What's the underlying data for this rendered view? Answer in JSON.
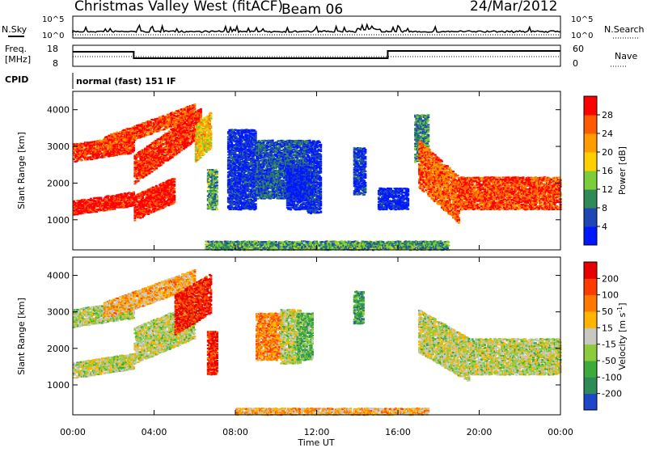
{
  "header": {
    "station": "Christmas Valley West (fitACF)",
    "beam": "Beam 06",
    "date": "24/Mar/2012"
  },
  "summary_panels": {
    "nsky_label": "N.Sky",
    "nsearch_label": "N.Search",
    "count_ticks": [
      "10^5",
      "10^0"
    ],
    "freq_label": "Freq.",
    "freq_unit": "[MHz]",
    "freq_ticks": [
      "18",
      "8"
    ],
    "nave_label": "Nave",
    "nave_ticks": [
      "60",
      "0"
    ],
    "cpid_label": "CPID",
    "cpid_text": "normal (fast) 151 IF"
  },
  "chart_data": [
    {
      "type": "heatmap",
      "title": "",
      "xlabel": "Time UT",
      "ylabel": "Slant Range [km]",
      "x_ticks": [
        "00:00",
        "04:00",
        "08:00",
        "12:00",
        "16:00",
        "20:00",
        "00:00"
      ],
      "xlim_hours": [
        0,
        24
      ],
      "ylim": [
        180,
        4500
      ],
      "y_ticks": [
        1000,
        2000,
        3000,
        4000
      ],
      "colorbar": {
        "label": "Power [dB]",
        "ticks": [
          4,
          8,
          12,
          16,
          20,
          24,
          28
        ],
        "colors": [
          "#0018ff",
          "#1e46b4",
          "#2e8b57",
          "#7ccd3c",
          "#ffd000",
          "#ff9c00",
          "#ff5a00",
          "#ff0000"
        ]
      },
      "regions": [
        {
          "start": 0.0,
          "end": 3.0,
          "r0": 2600,
          "r1": 3100,
          "climb": 250,
          "level": 0.9
        },
        {
          "start": 0.0,
          "end": 3.0,
          "r0": 1150,
          "r1": 1550,
          "climb": 250,
          "level": 0.95
        },
        {
          "start": 1.5,
          "end": 6.0,
          "r0": 2900,
          "r1": 3300,
          "climb": 900,
          "level": 0.85
        },
        {
          "start": 3.0,
          "end": 6.3,
          "r0": 2000,
          "r1": 2800,
          "climb": 1300,
          "level": 0.9
        },
        {
          "start": 3.0,
          "end": 5.0,
          "r0": 1000,
          "r1": 1700,
          "climb": 500,
          "level": 0.95
        },
        {
          "start": 6.0,
          "end": 6.8,
          "r0": 2600,
          "r1": 3600,
          "climb": 400,
          "level": 0.6
        },
        {
          "start": 6.6,
          "end": 7.1,
          "r0": 1300,
          "r1": 2400,
          "climb": 0,
          "level": 0.35
        },
        {
          "start": 7.6,
          "end": 9.0,
          "r0": 1300,
          "r1": 3500,
          "climb": 0,
          "level": 0.1
        },
        {
          "start": 9.0,
          "end": 11.5,
          "r0": 1600,
          "r1": 3200,
          "climb": 0,
          "level": 0.2
        },
        {
          "start": 10.5,
          "end": 11.8,
          "r0": 1300,
          "r1": 2500,
          "climb": 0,
          "level": 0.05
        },
        {
          "start": 11.5,
          "end": 12.2,
          "r0": 1200,
          "r1": 3200,
          "climb": 0,
          "level": 0.1
        },
        {
          "start": 13.8,
          "end": 14.4,
          "r0": 1700,
          "r1": 3000,
          "climb": 0,
          "level": 0.12
        },
        {
          "start": 15.0,
          "end": 16.5,
          "r0": 1300,
          "r1": 1900,
          "climb": 0,
          "level": 0.05
        },
        {
          "start": 16.8,
          "end": 17.5,
          "r0": 2600,
          "r1": 3900,
          "climb": 0,
          "level": 0.3
        },
        {
          "start": 17.0,
          "end": 19.0,
          "r0": 1900,
          "r1": 3200,
          "climb": -1000,
          "level": 0.8
        },
        {
          "start": 19.0,
          "end": 24.0,
          "r0": 1300,
          "r1": 2200,
          "climb": 0,
          "level": 0.85
        },
        {
          "start": 6.5,
          "end": 18.5,
          "r0": 200,
          "r1": 450,
          "climb": 0,
          "level": 0.35
        }
      ]
    },
    {
      "type": "heatmap",
      "title": "",
      "xlabel": "Time UT",
      "ylabel": "Slant Range [km]",
      "x_ticks": [
        "00:00",
        "04:00",
        "08:00",
        "12:00",
        "16:00",
        "20:00",
        "00:00"
      ],
      "xlim_hours": [
        0,
        24
      ],
      "ylim": [
        180,
        4500
      ],
      "y_ticks": [
        1000,
        2000,
        3000,
        4000
      ],
      "colorbar": {
        "label": "Velocity [m s^-1]",
        "ticks": [
          "200",
          "100",
          "50",
          "15",
          "-15",
          "-50",
          "-100",
          "-200"
        ],
        "colors": [
          "#1e46c8",
          "#2e8b57",
          "#3caa3c",
          "#8ccc3c",
          "#c8c8c0",
          "#ffb400",
          "#ff7800",
          "#ff3c00",
          "#e60000"
        ]
      },
      "regions": [
        {
          "start": 0.0,
          "end": 3.0,
          "r0": 2600,
          "r1": 3100,
          "climb": 250,
          "level": 0.45
        },
        {
          "start": 0.0,
          "end": 3.0,
          "r0": 1200,
          "r1": 1650,
          "climb": 250,
          "level": 0.47
        },
        {
          "start": 1.5,
          "end": 6.0,
          "r0": 2800,
          "r1": 3300,
          "climb": 900,
          "level": 0.62
        },
        {
          "start": 3.0,
          "end": 6.0,
          "r0": 1600,
          "r1": 2600,
          "climb": 700,
          "level": 0.47
        },
        {
          "start": 5.0,
          "end": 6.8,
          "r0": 2400,
          "r1": 3500,
          "climb": 600,
          "level": 0.9
        },
        {
          "start": 6.6,
          "end": 7.1,
          "r0": 1300,
          "r1": 2500,
          "climb": 0,
          "level": 0.9
        },
        {
          "start": 9.0,
          "end": 10.2,
          "r0": 1700,
          "r1": 3000,
          "climb": 0,
          "level": 0.7
        },
        {
          "start": 10.2,
          "end": 11.2,
          "r0": 1600,
          "r1": 3100,
          "climb": 0,
          "level": 0.47
        },
        {
          "start": 11.0,
          "end": 11.8,
          "r0": 1700,
          "r1": 3000,
          "climb": 0,
          "level": 0.3
        },
        {
          "start": 13.8,
          "end": 14.3,
          "r0": 2700,
          "r1": 3600,
          "climb": 0,
          "level": 0.25
        },
        {
          "start": 17.0,
          "end": 19.5,
          "r0": 1900,
          "r1": 3100,
          "climb": -800,
          "level": 0.47
        },
        {
          "start": 19.5,
          "end": 24.0,
          "r0": 1300,
          "r1": 2300,
          "climb": 0,
          "level": 0.47
        },
        {
          "start": 8.0,
          "end": 17.5,
          "r0": 200,
          "r1": 400,
          "climb": 0,
          "level": 0.62
        }
      ]
    }
  ]
}
